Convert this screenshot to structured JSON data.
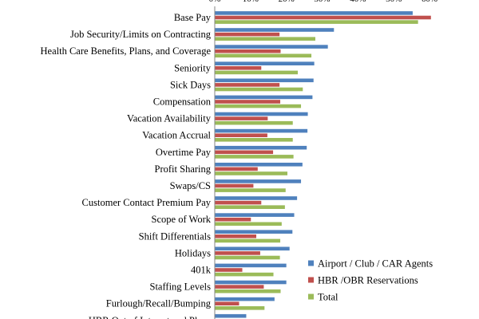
{
  "chart_data": {
    "type": "bar",
    "orientation": "horizontal",
    "title": "",
    "xlabel": "",
    "ylabel": "",
    "xlim": [
      0,
      0.6
    ],
    "x_ticks": [
      "0%",
      "10%",
      "20%",
      "30%",
      "40%",
      "50%",
      "60%"
    ],
    "grid": false,
    "legend_position": "bottom-right",
    "categories": [
      "Base Pay",
      "Job Security/Limits on Contracting",
      "Health Care Benefits, Plans, and Coverage",
      "Seniority",
      "Sick Days",
      "Compensation",
      "Vacation Availability",
      "Vacation Accrual",
      "Overtime Pay",
      "Profit Sharing",
      "Swaps/CS",
      "Customer Contact Premium Pay",
      "Scope of Work",
      "Shift Differentials",
      "Holidays",
      "401k",
      "Staffing Levels",
      "Furlough/Recall/Bumping",
      "HBR Out of Interest and Plans"
    ],
    "series": [
      {
        "name": "Airport / Club / CAR Agents",
        "color": "#4f81bd",
        "values": [
          0.553,
          0.333,
          0.316,
          0.278,
          0.276,
          0.273,
          0.26,
          0.259,
          0.257,
          0.245,
          0.241,
          0.23,
          0.222,
          0.217,
          0.209,
          0.2,
          0.2,
          0.167,
          0.088
        ]
      },
      {
        "name": "HBR /OBR Reservations",
        "color": "#c0504d",
        "values": [
          0.604,
          0.181,
          0.184,
          0.13,
          0.181,
          0.183,
          0.148,
          0.147,
          0.163,
          0.12,
          0.108,
          0.13,
          0.101,
          0.116,
          0.127,
          0.077,
          0.137,
          0.068,
          0.0
        ]
      },
      {
        "name": "Total",
        "color": "#9bbb59",
        "values": [
          0.568,
          0.281,
          0.27,
          0.232,
          0.246,
          0.241,
          0.218,
          0.218,
          0.22,
          0.203,
          0.198,
          0.196,
          0.187,
          0.183,
          0.182,
          0.164,
          0.184,
          0.139,
          0.0
        ]
      }
    ]
  }
}
